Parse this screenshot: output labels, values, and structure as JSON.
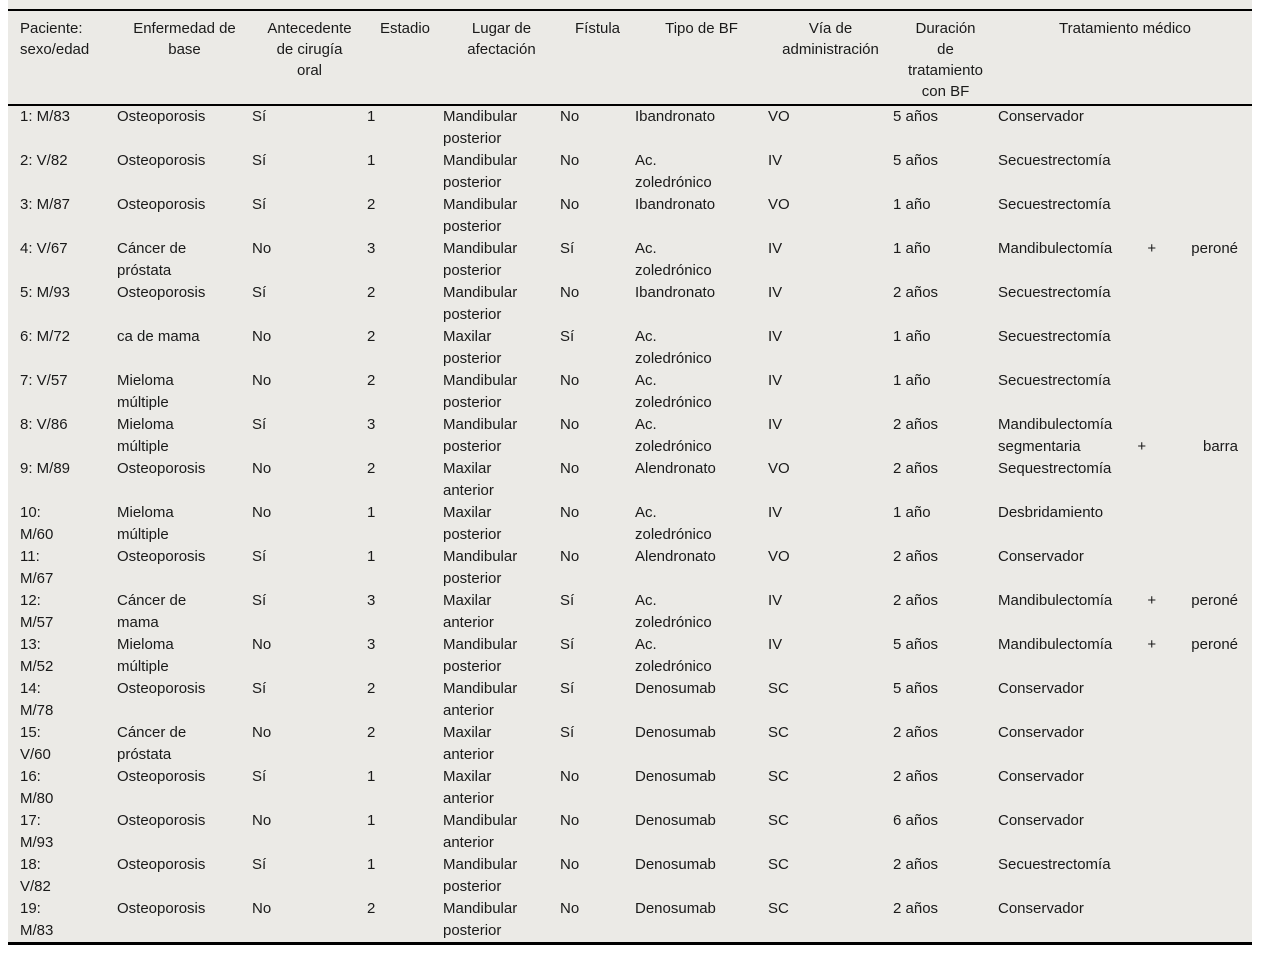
{
  "colors": {
    "table_background": "#EBEAE6",
    "page_background": "#FFFFFF",
    "rule_color": "#000000",
    "text_color": "#1A1A1A"
  },
  "table": {
    "columns": [
      "Paciente:\nsexo/edad",
      "Enfermedad de\nbase",
      "Antecedente\nde cirugía\noral",
      "Estadio",
      "Lugar de\nafectación",
      "Fístula",
      "Tipo de BF",
      "Vía de\nadministración",
      "Duración\nde\ntratamiento\ncon BF",
      "Tratamiento médico"
    ],
    "rows": [
      [
        "1: M/83",
        "Osteoporosis",
        "Sí",
        "1",
        "Mandibular\nposterior",
        "No",
        "Ibandronato",
        "VO",
        "5 años",
        "Conservador"
      ],
      [
        "2: V/82",
        "Osteoporosis",
        "Sí",
        "1",
        "Mandibular\nposterior",
        "No",
        "Ac.\nzoledrónico",
        "IV",
        "5 años",
        "Secuestrectomía"
      ],
      [
        "3: M/87",
        "Osteoporosis",
        "Sí",
        "2",
        "Mandibular\nposterior",
        "No",
        "Ibandronato",
        "VO",
        "1 año",
        "Secuestrectomía"
      ],
      [
        "4: V/67",
        "Cáncer de\npróstata",
        "No",
        "3",
        "Mandibular\nposterior",
        "Sí",
        "Ac.\nzoledrónico",
        "IV",
        "1 año",
        "Mandibulectomía + peroné"
      ],
      [
        "5: M/93",
        "Osteoporosis",
        "Sí",
        "2",
        "Mandibular\nposterior",
        "No",
        "Ibandronato",
        "IV",
        "2 años",
        "Secuestrectomía"
      ],
      [
        "6: M/72",
        "ca de mama",
        "No",
        "2",
        "Maxilar\nposterior",
        "Sí",
        "Ac.\nzoledrónico",
        "IV",
        "1 año",
        "Secuestrectomía"
      ],
      [
        "7: V/57",
        "Mieloma\nmúltiple",
        "No",
        "2",
        "Mandibular\nposterior",
        "No",
        "Ac.\nzoledrónico",
        "IV",
        "1 año",
        "Secuestrectomía"
      ],
      [
        "8: V/86",
        "Mieloma\nmúltiple",
        "Sí",
        "3",
        "Mandibular\nposterior",
        "No",
        "Ac.\nzoledrónico",
        "IV",
        "2 años",
        "Mandibulectomía\nsegmentaria + barra"
      ],
      [
        "9: M/89",
        "Osteoporosis",
        "No",
        "2",
        "Maxilar\nanterior",
        "No",
        "Alendronato",
        "VO",
        "2 años",
        "Sequestrectomía"
      ],
      [
        "10:\nM/60",
        "Mieloma\nmúltiple",
        "No",
        "1",
        "Maxilar\nposterior",
        "No",
        "Ac.\nzoledrónico",
        "IV",
        "1 año",
        "Desbridamiento"
      ],
      [
        "11:\nM/67",
        "Osteoporosis",
        "Sí",
        "1",
        "Mandibular\nposterior",
        "No",
        "Alendronato",
        "VO",
        "2 años",
        "Conservador"
      ],
      [
        "12:\nM/57",
        "Cáncer de\nmama",
        "Sí",
        "3",
        "Maxilar\nanterior",
        "Sí",
        "Ac.\nzoledrónico",
        "IV",
        "2 años",
        "Mandibulectomía + peroné"
      ],
      [
        "13:\nM/52",
        "Mieloma\nmúltiple",
        "No",
        "3",
        "Mandibular\nposterior",
        "Sí",
        "Ac.\nzoledrónico",
        "IV",
        "5 años",
        "Mandibulectomía + peroné"
      ],
      [
        "14:\nM/78",
        "Osteoporosis",
        "Sí",
        "2",
        "Mandibular\nanterior",
        "Sí",
        "Denosumab",
        "SC",
        "5 años",
        "Conservador"
      ],
      [
        "15:\nV/60",
        "Cáncer de\npróstata",
        "No",
        "2",
        "Maxilar\nanterior",
        "Sí",
        "Denosumab",
        "SC",
        "2 años",
        "Conservador"
      ],
      [
        "16:\nM/80",
        "Osteoporosis",
        "Sí",
        "1",
        "Maxilar\nanterior",
        "No",
        "Denosumab",
        "SC",
        "2 años",
        "Conservador"
      ],
      [
        "17:\nM/93",
        "Osteoporosis",
        "No",
        "1",
        "Mandibular\nanterior",
        "No",
        "Denosumab",
        "SC",
        "6 años",
        "Conservador"
      ],
      [
        "18:\nV/82",
        "Osteoporosis",
        "Sí",
        "1",
        "Mandibular\nposterior",
        "No",
        "Denosumab",
        "SC",
        "2 años",
        "Secuestrectomía"
      ],
      [
        "19:\nM/83",
        "Osteoporosis",
        "No",
        "2",
        "Mandibular\nposterior",
        "No",
        "Denosumab",
        "SC",
        "2 años",
        "Conservador"
      ]
    ]
  }
}
